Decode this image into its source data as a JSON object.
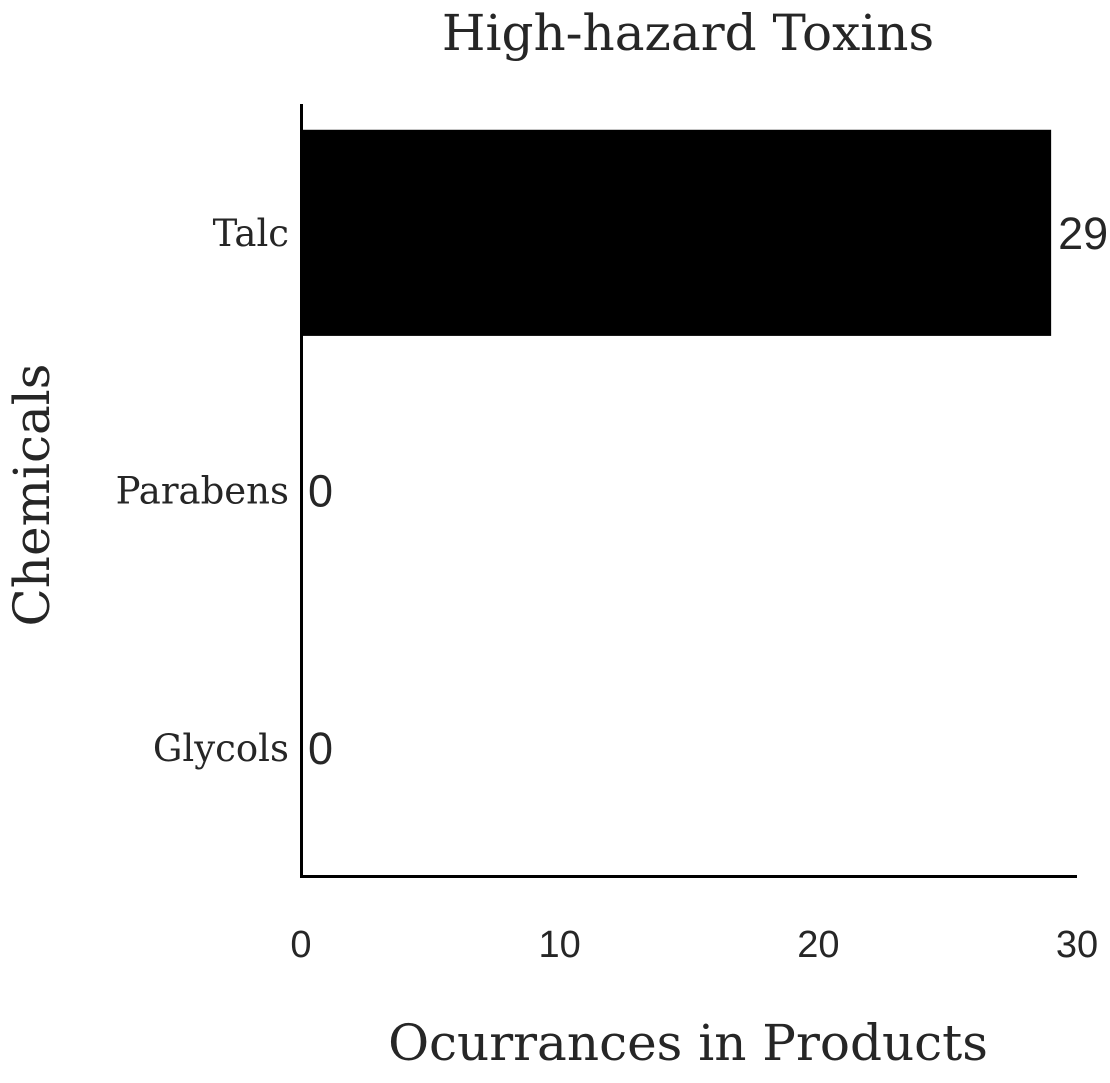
{
  "chart_data": {
    "type": "bar",
    "orientation": "horizontal",
    "title": "High-hazard Toxins",
    "xlabel": "Ocurrances in Products",
    "ylabel": "Chemicals",
    "categories": [
      "Talc",
      "Parabens",
      "Glycols"
    ],
    "values": [
      29,
      0,
      0
    ],
    "xlim": [
      0,
      30
    ],
    "xticks": [
      0,
      10,
      20,
      30
    ],
    "grid": false,
    "legend": "none",
    "bar_color": "#000000",
    "text_color": "#262626",
    "axis_color": "#000000",
    "data_labels": true
  }
}
